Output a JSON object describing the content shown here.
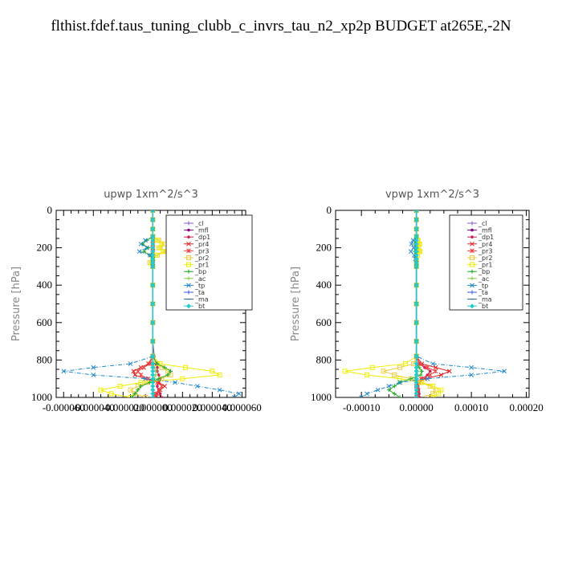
{
  "page_title": "flthist.fdef.taus_tuning_clubb_c_invrs_tau_n2_xp2p  BUDGET at265E,-2N",
  "chart_data": [
    {
      "type": "line",
      "title": "upwp   1xm^2/s^3",
      "ylabel": "Pressure [hPa]",
      "xlabel": "",
      "xlim": [
        -6.5e-05,
        6.25e-05
      ],
      "ylim": [
        1000,
        0
      ],
      "y_ticks": [
        0,
        200,
        400,
        600,
        800,
        1000
      ],
      "y_tick_labels": [
        "0",
        "200",
        "400",
        "600",
        "800",
        "1000"
      ],
      "x_tick_labels": [
        "-0.000060",
        "-0.000040",
        "-0.000020",
        "0.000000",
        "0.000020",
        "0.000040",
        "0.000060"
      ],
      "x_ticks": [
        -6e-05,
        -4e-05,
        -2e-05,
        0,
        2e-05,
        4e-05,
        6e-05
      ],
      "levels": [
        0,
        50,
        100,
        140,
        160,
        180,
        200,
        220,
        240,
        260,
        280,
        300,
        400,
        500,
        600,
        700,
        780,
        820,
        840,
        860,
        880,
        900,
        920,
        940,
        960,
        980,
        1000
      ],
      "series": [
        {
          "name": "_cl",
          "color": "#8855cc",
          "marker": "plus",
          "values": [
            0,
            0,
            0,
            0,
            0,
            0,
            0,
            0,
            0,
            0,
            0,
            0,
            0,
            0,
            0,
            0,
            0,
            0,
            0,
            0,
            0,
            0,
            0,
            0,
            0,
            0,
            0
          ]
        },
        {
          "name": "_mfl",
          "color": "#880088",
          "marker": "dot",
          "values": [
            0,
            0,
            0,
            0,
            0,
            0,
            0,
            0,
            0,
            0,
            0,
            0,
            0,
            0,
            0,
            0,
            0,
            0,
            0,
            0,
            0,
            0,
            0,
            0,
            0,
            0,
            0
          ]
        },
        {
          "name": "_dp1",
          "color": "#cc2255",
          "marker": "dot",
          "values": [
            0,
            0,
            0,
            0,
            0,
            0,
            0,
            0,
            0,
            0,
            0,
            0,
            0,
            0,
            0,
            0,
            1e-06,
            2e-06,
            3e-06,
            3e-06,
            4e-06,
            5e-06,
            4e-06,
            3e-06,
            4e-06,
            5e-06,
            6e-06
          ]
        },
        {
          "name": "_pr4",
          "color": "#dd2222",
          "marker": "x",
          "values": [
            0,
            0,
            0,
            0,
            0,
            0,
            0,
            0,
            0,
            0,
            0,
            0,
            0,
            0,
            0,
            0,
            0,
            -3e-06,
            -8e-06,
            -1.3e-05,
            -1.2e-05,
            -5e-06,
            4e-06,
            8e-06,
            5e-06,
            3e-06,
            2e-06
          ]
        },
        {
          "name": "_pr3",
          "color": "#ee4444",
          "marker": "star",
          "values": [
            0,
            0,
            0,
            0,
            0,
            0,
            0,
            0,
            0,
            0,
            0,
            0,
            0,
            0,
            0,
            0,
            0,
            -2e-06,
            -6e-06,
            -1e-05,
            -8e-06,
            -3e-06,
            3e-06,
            6e-06,
            4e-06,
            2e-06,
            1e-06
          ]
        },
        {
          "name": "_pr2",
          "color": "#eecc44",
          "marker": "square",
          "values": [
            0,
            0,
            0,
            0,
            4e-06,
            8e-06,
            5e-06,
            9e-06,
            3e-06,
            0,
            -2e-06,
            0,
            0,
            0,
            0,
            0,
            0,
            2e-06,
            6e-06,
            1e-05,
            1.2e-05,
            6e-06,
            -4e-06,
            -1e-05,
            -1.5e-05,
            -1.2e-05,
            -5e-06
          ]
        },
        {
          "name": "_pr1",
          "color": "#eeee00",
          "marker": "square",
          "values": [
            0,
            0,
            0,
            0,
            3e-06,
            6e-06,
            4e-06,
            7e-06,
            2e-06,
            0,
            -1e-06,
            0,
            0,
            0,
            0,
            0,
            0,
            5e-06,
            2.2e-05,
            4e-05,
            4.5e-05,
            2e-05,
            -8e-06,
            -2.2e-05,
            -3.5e-05,
            -2.8e-05,
            -1.5e-05
          ]
        },
        {
          "name": "_bp",
          "color": "#22aa22",
          "marker": "plus",
          "values": [
            0,
            0,
            0,
            0,
            -4e-06,
            -7e-06,
            -3e-06,
            -6e-06,
            -2e-06,
            0,
            0,
            0,
            0,
            0,
            0,
            0,
            0,
            3e-06,
            8e-06,
            1.2e-05,
            1e-05,
            4e-06,
            -2e-06,
            -8e-06,
            -1e-05,
            -1.2e-05,
            -1.4e-05
          ]
        },
        {
          "name": "_ac",
          "color": "#88cc44",
          "marker": "plus",
          "values": [
            0,
            0,
            0,
            0,
            0,
            0,
            0,
            0,
            0,
            0,
            0,
            0,
            0,
            0,
            0,
            0,
            0,
            0,
            1e-06,
            2e-06,
            2e-06,
            1e-06,
            0,
            0,
            0,
            0,
            0
          ]
        },
        {
          "name": "_tp",
          "color": "#2288cc",
          "marker": "x",
          "values": [
            0,
            0,
            0,
            0,
            -5e-06,
            -8e-06,
            -4e-06,
            -9e-06,
            -2e-06,
            0,
            0,
            0,
            0,
            0,
            0,
            0,
            0,
            -1.5e-05,
            -4e-05,
            -6e-05,
            -4e-05,
            -5e-06,
            1.5e-05,
            3e-05,
            4.5e-05,
            5.8e-05,
            5.5e-05
          ]
        },
        {
          "name": "_ta",
          "color": "#3355dd",
          "marker": "plus",
          "values": [
            0,
            0,
            0,
            0,
            0,
            0,
            0,
            0,
            0,
            0,
            0,
            0,
            0,
            0,
            0,
            0,
            0,
            0,
            0,
            0,
            0,
            0,
            0,
            0,
            0,
            0,
            0
          ]
        },
        {
          "name": "_ma",
          "color": "#226688",
          "marker": "dash",
          "values": [
            0,
            0,
            0,
            0,
            0,
            0,
            0,
            0,
            0,
            0,
            0,
            0,
            0,
            0,
            0,
            0,
            0,
            0,
            0,
            0,
            0,
            0,
            0,
            0,
            0,
            0,
            0
          ]
        },
        {
          "name": "_bt",
          "color": "#22cccc",
          "marker": "diamond",
          "values": [
            0,
            0,
            0,
            0,
            0,
            0,
            0,
            0,
            0,
            0,
            0,
            0,
            0,
            0,
            0,
            0,
            0,
            0,
            0,
            0,
            0,
            0,
            0,
            0,
            0,
            0,
            0
          ]
        }
      ]
    },
    {
      "type": "line",
      "title": "vpwp   1xm^2/s^3",
      "ylabel": "Pressure [hPa]",
      "xlabel": "",
      "xlim": [
        -0.000147,
        0.000205
      ],
      "ylim": [
        1000,
        0
      ],
      "y_ticks": [
        0,
        200,
        400,
        600,
        800,
        1000
      ],
      "y_tick_labels": [
        "0",
        "200",
        "400",
        "600",
        "800",
        "1000"
      ],
      "x_tick_labels": [
        "-0.00010",
        "0.00000",
        "0.00010",
        "0.00020"
      ],
      "x_ticks": [
        -0.0001,
        0,
        0.0001,
        0.0002
      ],
      "levels": [
        0,
        50,
        100,
        140,
        160,
        180,
        200,
        220,
        240,
        260,
        280,
        300,
        400,
        500,
        600,
        700,
        780,
        820,
        840,
        860,
        880,
        900,
        920,
        940,
        960,
        980,
        1000
      ],
      "series": [
        {
          "name": "_cl",
          "color": "#8855cc",
          "marker": "plus",
          "values": [
            0,
            0,
            0,
            0,
            0,
            0,
            0,
            0,
            0,
            0,
            0,
            0,
            0,
            0,
            0,
            0,
            0,
            0,
            0,
            0,
            0,
            0,
            0,
            0,
            0,
            0,
            0
          ]
        },
        {
          "name": "_mfl",
          "color": "#880088",
          "marker": "dot",
          "values": [
            0,
            0,
            0,
            0,
            0,
            0,
            0,
            0,
            0,
            0,
            0,
            0,
            0,
            0,
            0,
            0,
            0,
            0,
            0,
            0,
            0,
            0,
            0,
            0,
            0,
            0,
            0
          ]
        },
        {
          "name": "_dp1",
          "color": "#cc2255",
          "marker": "dot",
          "values": [
            0,
            0,
            0,
            0,
            0,
            0,
            0,
            0,
            0,
            0,
            0,
            0,
            0,
            0,
            0,
            0,
            0,
            5e-06,
            1.5e-05,
            2.5e-05,
            2e-05,
            1e-05,
            5e-06,
            3e-06,
            4e-06,
            5e-06,
            6e-06
          ]
        },
        {
          "name": "_pr4",
          "color": "#dd2222",
          "marker": "x",
          "values": [
            0,
            0,
            0,
            0,
            0,
            0,
            0,
            0,
            0,
            0,
            0,
            0,
            0,
            0,
            0,
            0,
            0,
            1e-05,
            3.5e-05,
            6e-05,
            4.5e-05,
            1.5e-05,
            5e-06,
            0,
            3e-06,
            2e-06,
            1e-06
          ]
        },
        {
          "name": "_pr3",
          "color": "#ee4444",
          "marker": "star",
          "values": [
            0,
            0,
            0,
            0,
            0,
            0,
            0,
            0,
            0,
            0,
            0,
            0,
            0,
            0,
            0,
            0,
            0,
            6e-06,
            2e-05,
            3.5e-05,
            2.5e-05,
            8e-06,
            3e-06,
            0,
            2e-06,
            1e-06,
            0
          ]
        },
        {
          "name": "_pr2",
          "color": "#eecc44",
          "marker": "square",
          "values": [
            0,
            0,
            0,
            0,
            2e-06,
            4e-06,
            3e-06,
            5e-06,
            2e-06,
            0,
            0,
            0,
            0,
            0,
            0,
            0,
            0,
            -5e-06,
            -3e-05,
            -6e-05,
            -4e-05,
            -1e-05,
            8e-06,
            2.5e-05,
            3.5e-05,
            3e-05,
            2e-05
          ]
        },
        {
          "name": "_pr1",
          "color": "#eeee00",
          "marker": "square",
          "values": [
            0,
            0,
            0,
            0,
            3e-06,
            6e-06,
            4e-06,
            7e-06,
            2e-06,
            0,
            0,
            0,
            0,
            0,
            0,
            0,
            0,
            -2e-05,
            -8e-05,
            -0.00013,
            -9e-05,
            -3e-05,
            1e-05,
            3e-05,
            4.5e-05,
            4e-05,
            3e-05
          ]
        },
        {
          "name": "_bp",
          "color": "#22aa22",
          "marker": "plus",
          "values": [
            0,
            0,
            0,
            0,
            -2e-06,
            -3e-06,
            -2e-06,
            -3e-06,
            -1e-06,
            0,
            0,
            0,
            0,
            0,
            0,
            0,
            0,
            0,
            5e-06,
            1e-05,
            8e-06,
            -1e-05,
            -3e-05,
            -4e-05,
            -5e-05,
            -4e-05,
            -3e-05
          ]
        },
        {
          "name": "_ac",
          "color": "#88cc44",
          "marker": "plus",
          "values": [
            0,
            0,
            0,
            0,
            0,
            0,
            0,
            0,
            0,
            0,
            0,
            0,
            0,
            0,
            0,
            0,
            0,
            0,
            1e-06,
            2e-06,
            2e-06,
            1e-06,
            0,
            0,
            0,
            0,
            0
          ]
        },
        {
          "name": "_tp",
          "color": "#2288cc",
          "marker": "x",
          "values": [
            0,
            0,
            0,
            0,
            -6e-06,
            -9e-06,
            -5e-06,
            -1e-05,
            -4e-06,
            -2e-06,
            0,
            0,
            0,
            0,
            0,
            0,
            0,
            3e-05,
            0.0001,
            0.00016,
            0.0001,
            2e-05,
            -3e-05,
            -5e-05,
            -7e-05,
            -9e-05,
            -0.0001
          ]
        },
        {
          "name": "_ta",
          "color": "#3355dd",
          "marker": "plus",
          "values": [
            0,
            0,
            0,
            0,
            0,
            0,
            0,
            0,
            0,
            0,
            0,
            0,
            0,
            0,
            0,
            0,
            0,
            0,
            0,
            0,
            0,
            0,
            0,
            0,
            0,
            0,
            0
          ]
        },
        {
          "name": "_ma",
          "color": "#226688",
          "marker": "dash",
          "values": [
            0,
            0,
            0,
            0,
            0,
            0,
            0,
            0,
            0,
            0,
            0,
            0,
            0,
            0,
            0,
            0,
            0,
            0,
            0,
            0,
            0,
            0,
            0,
            0,
            0,
            0,
            0
          ]
        },
        {
          "name": "_bt",
          "color": "#22cccc",
          "marker": "diamond",
          "values": [
            0,
            0,
            0,
            0,
            0,
            0,
            0,
            0,
            0,
            0,
            0,
            0,
            0,
            0,
            0,
            0,
            0,
            0,
            0,
            0,
            0,
            0,
            0,
            0,
            0,
            0,
            0
          ]
        }
      ]
    }
  ]
}
